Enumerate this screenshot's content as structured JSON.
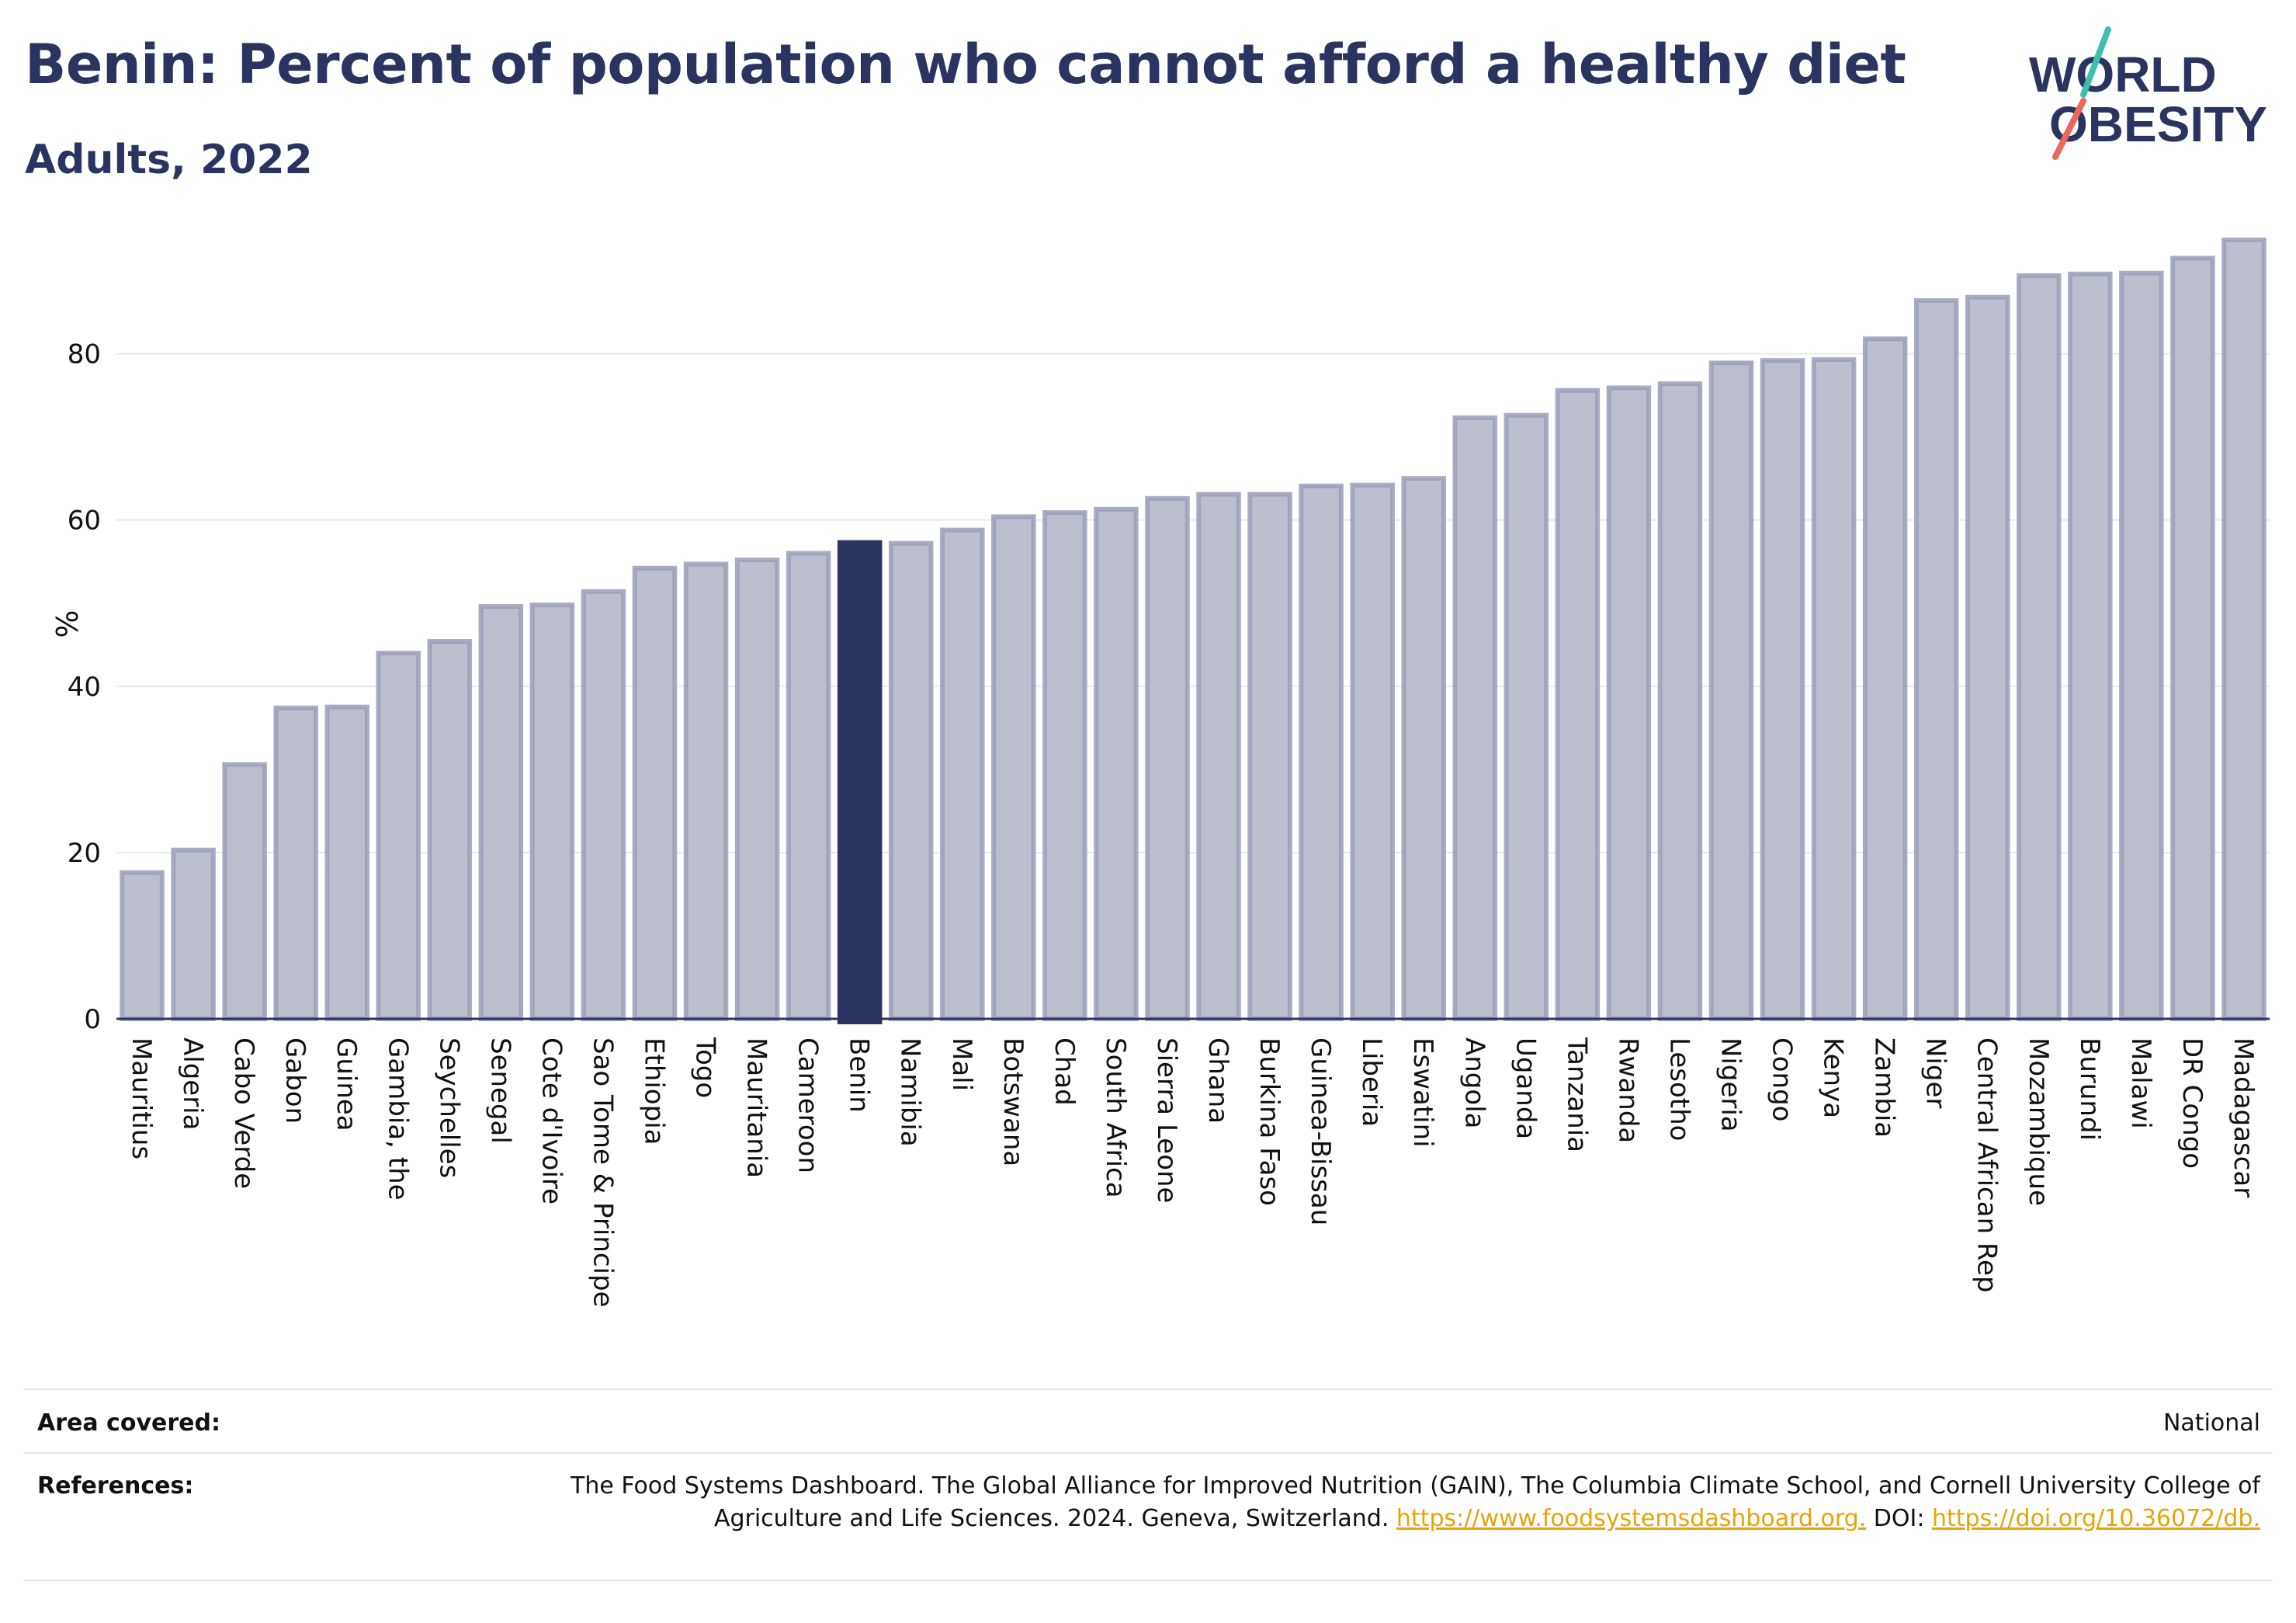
{
  "title": "Benin: Percent of population who cannot afford a healthy diet",
  "subtitle": "Adults, 2022",
  "logo": {
    "line1": "WORLD",
    "line2": "OBESITY",
    "text_color": "#2b3461",
    "slash_top_color": "#3cbfb0",
    "slash_bottom_color": "#e8685a"
  },
  "colors": {
    "bar_fill": "#bcc0ce",
    "bar_stroke": "#9a9fb8",
    "highlight": "#2b3461",
    "grid": "#e6e8ef",
    "axis": "#2b3461"
  },
  "chart_data": {
    "type": "bar",
    "title": "Benin: Percent of population who cannot afford a healthy diet",
    "subtitle": "Adults, 2022",
    "xlabel": "",
    "ylabel": "%",
    "ylim": [
      0,
      95
    ],
    "yticks": [
      0,
      20,
      40,
      60,
      80
    ],
    "grid": true,
    "highlight": "Benin",
    "categories": [
      "Mauritius",
      "Algeria",
      "Cabo Verde",
      "Gabon",
      "Guinea",
      "Gambia, the",
      "Seychelles",
      "Senegal",
      "Cote d'Ivoire",
      "Sao Tome & Principe",
      "Ethiopia",
      "Togo",
      "Mauritania",
      "Cameroon",
      "Benin",
      "Namibia",
      "Mali",
      "Botswana",
      "Chad",
      "South Africa",
      "Sierra Leone",
      "Ghana",
      "Burkina Faso",
      "Guinea-Bissau",
      "Liberia",
      "Eswatini",
      "Angola",
      "Uganda",
      "Tanzania",
      "Rwanda",
      "Lesotho",
      "Nigeria",
      "Congo",
      "Kenya",
      "Zambia",
      "Niger",
      "Central African Rep",
      "Mozambique",
      "Burundi",
      "Malawi",
      "DR Congo",
      "Madagascar"
    ],
    "values": [
      17.6,
      20.3,
      30.6,
      37.4,
      37.5,
      44.0,
      45.4,
      49.6,
      49.8,
      51.4,
      54.2,
      54.7,
      55.2,
      56.0,
      57.3,
      57.2,
      58.8,
      60.4,
      60.9,
      61.3,
      62.6,
      63.1,
      63.1,
      64.1,
      64.2,
      65.0,
      72.3,
      72.6,
      75.6,
      75.9,
      76.4,
      78.9,
      79.2,
      79.3,
      81.8,
      86.4,
      86.8,
      89.4,
      89.6,
      89.7,
      91.5,
      93.7
    ]
  },
  "footer": {
    "area_label": "Area covered:",
    "area_value": "National",
    "references_label": "References:",
    "references_text": "The Food Systems Dashboard. The Global Alliance for Improved Nutrition (GAIN), The Columbia Climate School, and Cornell University College of Agriculture and Life Sciences. 2024. Geneva, Switzerland.",
    "references_link1": "https://www.foodsystemsdashboard.org.",
    "references_doi_label": "DOI:",
    "references_link2": "https://doi.org/10.36072/db."
  }
}
